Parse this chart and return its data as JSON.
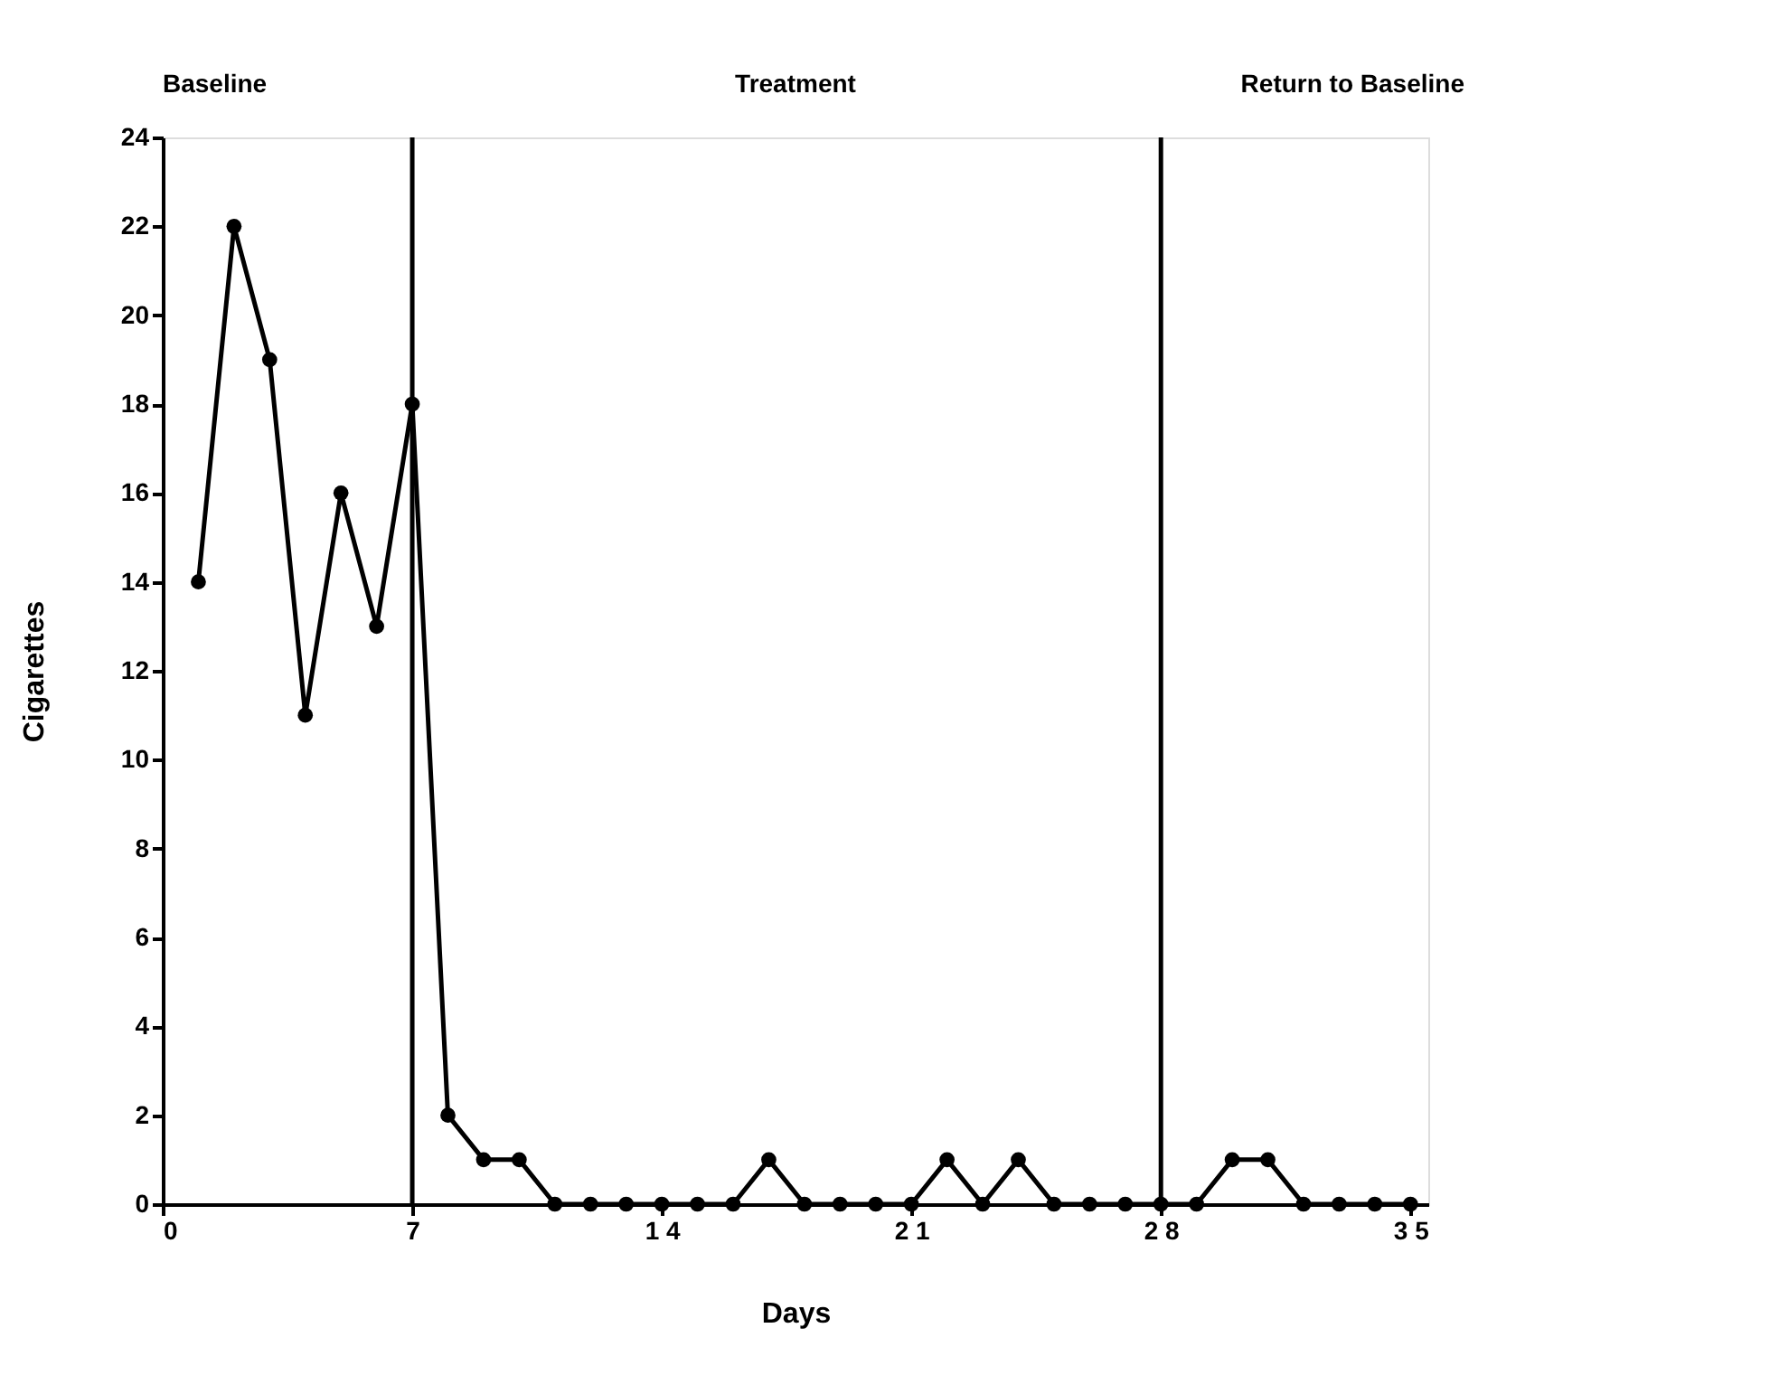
{
  "chart_data": {
    "type": "line",
    "xlabel": "Days",
    "ylabel": "Cigarettes",
    "annotations": [
      "Baseline",
      "Treatment",
      "Return to Baseline"
    ],
    "x": [
      1,
      2,
      3,
      4,
      5,
      6,
      7,
      8,
      9,
      10,
      11,
      12,
      13,
      14,
      15,
      16,
      17,
      18,
      19,
      20,
      21,
      22,
      23,
      24,
      25,
      26,
      27,
      28,
      29,
      30,
      31,
      32,
      33,
      34,
      35
    ],
    "series": [
      {
        "color": "#000000",
        "values": [
          14,
          22,
          19,
          11,
          16,
          13,
          18,
          2,
          1,
          1,
          0,
          0,
          0,
          0,
          0,
          0,
          1,
          0,
          0,
          0,
          0,
          1,
          0,
          1,
          0,
          0,
          0,
          0,
          0,
          1,
          1,
          0,
          0,
          0,
          0
        ]
      }
    ],
    "xlim": [
      0,
      35.5
    ],
    "ylim": [
      0,
      24
    ],
    "xticks": [
      0,
      7,
      {
        "value": 14,
        "label": "1 4"
      },
      {
        "value": 21,
        "label": "2 1"
      },
      {
        "value": 28,
        "label": "2 8"
      },
      {
        "value": 35,
        "label": "3 5"
      }
    ],
    "yticks": [
      0,
      2,
      4,
      6,
      8,
      10,
      12,
      14,
      16,
      18,
      20,
      22,
      24
    ],
    "ref_lines": [
      {
        "axis": "x",
        "value": 7,
        "color": "#000000"
      },
      {
        "axis": "x",
        "value": 28,
        "color": "#000000"
      }
    ],
    "grid": false,
    "marker": "circle",
    "line_style": "solid"
  }
}
